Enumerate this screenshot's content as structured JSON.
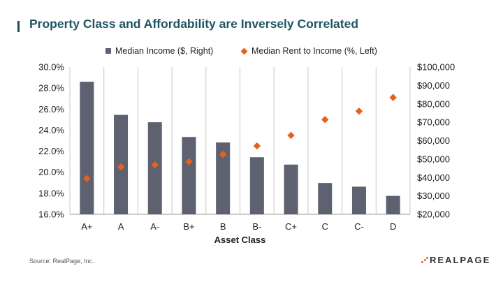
{
  "title": "Property Class and Affordability are Inversely Correlated",
  "source": "Source: RealPage, Inc.",
  "logo_text": "REALPAGE",
  "colors": {
    "bar": "#5d6170",
    "marker": "#e8601c",
    "title": "#1f5563",
    "grid": "#c8c8c8"
  },
  "chart_data": {
    "type": "bar",
    "title": "Property Class and Affordability are Inversely Correlated",
    "xlabel": "Asset Class",
    "categories": [
      "A+",
      "A",
      "A-",
      "B+",
      "B",
      "B-",
      "C+",
      "C",
      "C-",
      "D"
    ],
    "series": [
      {
        "name": "Median Income ($, Right)",
        "type": "bar",
        "axis": "right",
        "values": [
          92000,
          74000,
          70000,
          62000,
          59000,
          51000,
          47000,
          37000,
          35000,
          30000
        ]
      },
      {
        "name": "Median Rent to Income (%, Left)",
        "type": "scatter",
        "axis": "left",
        "values": [
          19.4,
          20.5,
          20.7,
          21.0,
          21.7,
          22.5,
          23.5,
          25.0,
          25.8,
          27.1
        ]
      }
    ],
    "y_left": {
      "min": 16.0,
      "max": 30.0,
      "step": 2.0,
      "ticks": [
        "30.0%",
        "28.0%",
        "26.0%",
        "24.0%",
        "22.0%",
        "20.0%",
        "18.0%",
        "16.0%"
      ]
    },
    "y_right": {
      "min": 20000,
      "max": 100000,
      "step": 10000,
      "ticks": [
        "$100,000",
        "$90,000",
        "$80,000",
        "$70,000",
        "$60,000",
        "$50,000",
        "$40,000",
        "$30,000",
        "$20,000"
      ]
    },
    "legend_position": "top-center",
    "grid": "vertical"
  }
}
